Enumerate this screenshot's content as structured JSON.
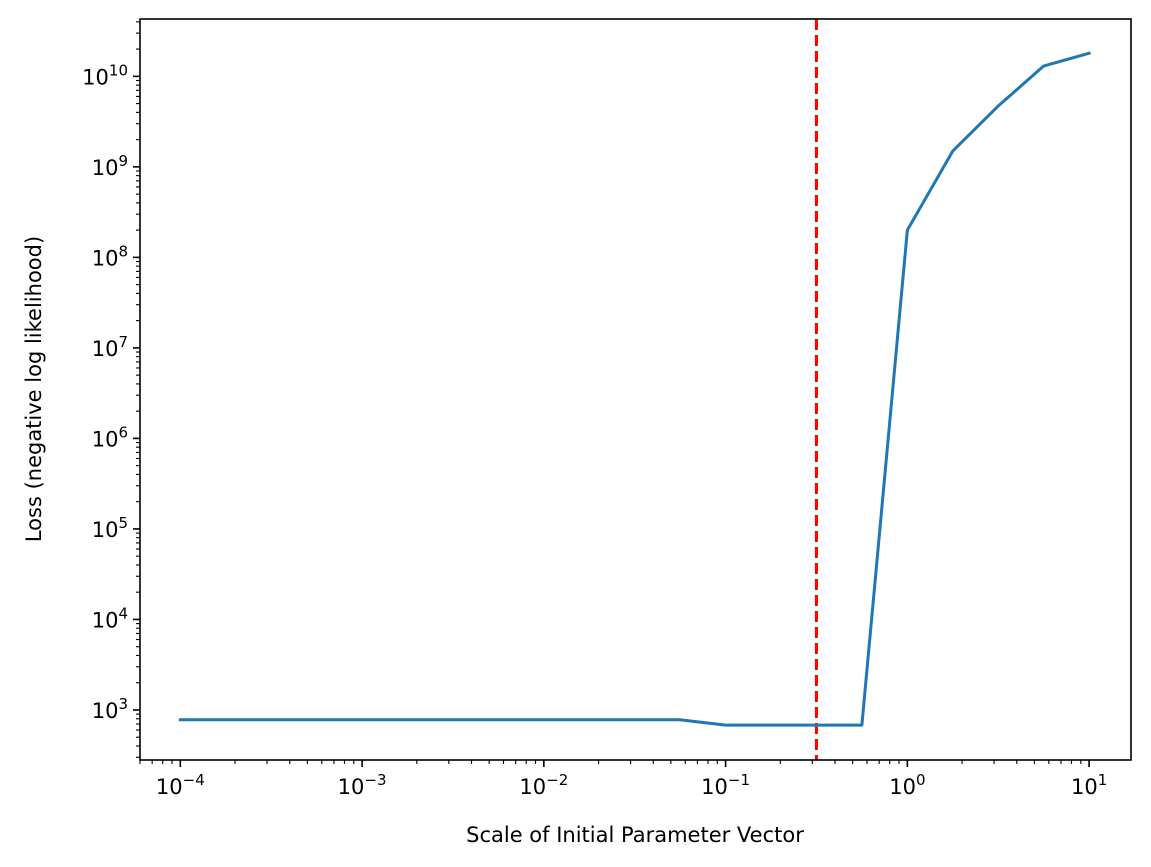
{
  "chart_data": {
    "type": "line",
    "title": "",
    "xlabel": "Scale of Initial Parameter Vector",
    "ylabel": "Loss (negative log likelihood)",
    "xscale": "log",
    "yscale": "log",
    "xlim": [
      6e-05,
      17
    ],
    "ylim": [
      280,
      43000000000
    ],
    "grid": false,
    "x_ticks": [
      {
        "value": 0.0001,
        "base": "10",
        "exp": "−4"
      },
      {
        "value": 0.001,
        "base": "10",
        "exp": "−3"
      },
      {
        "value": 0.01,
        "base": "10",
        "exp": "−2"
      },
      {
        "value": 0.1,
        "base": "10",
        "exp": "−1"
      },
      {
        "value": 1,
        "base": "10",
        "exp": "0"
      },
      {
        "value": 10,
        "base": "10",
        "exp": "1"
      }
    ],
    "y_ticks": [
      {
        "value": 1000,
        "base": "10",
        "exp": "3"
      },
      {
        "value": 10000,
        "base": "10",
        "exp": "4"
      },
      {
        "value": 100000,
        "base": "10",
        "exp": "5"
      },
      {
        "value": 1000000,
        "base": "10",
        "exp": "6"
      },
      {
        "value": 10000000,
        "base": "10",
        "exp": "7"
      },
      {
        "value": 100000000,
        "base": "10",
        "exp": "8"
      },
      {
        "value": 1000000000,
        "base": "10",
        "exp": "9"
      },
      {
        "value": 10000000000,
        "base": "10",
        "exp": "10"
      }
    ],
    "series": [
      {
        "color": "#1f77b4",
        "x": [
          0.0001,
          0.056,
          0.1,
          0.178,
          0.316,
          0.562,
          1.0,
          1.78,
          3.16,
          5.62,
          10.0
        ],
        "y": [
          780,
          780,
          680,
          680,
          680,
          680,
          200000000,
          1500000000,
          4700000000,
          13000000000,
          18000000000
        ]
      }
    ],
    "vlines": [
      {
        "x": 0.316,
        "color": "#ff0000",
        "style": "dashed"
      }
    ]
  }
}
